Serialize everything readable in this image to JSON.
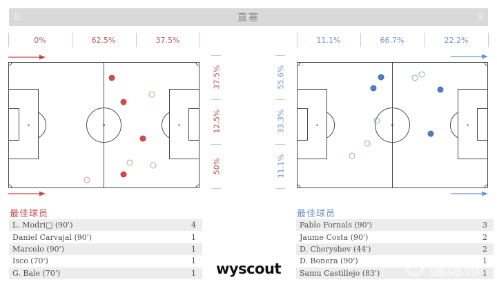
{
  "header": {
    "left_count": "8",
    "title": "直塞",
    "right_count": "9"
  },
  "colors": {
    "team_a": "#c64648",
    "team_a_fill": "#cf4b4d",
    "team_a_open": "#d69495",
    "team_b": "#436fb0",
    "team_b_fill": "#4d7dc5",
    "team_b_open": "#92a5c2",
    "bar_bg": "#d9d9d9",
    "pitch_line": "#484848"
  },
  "team_a": {
    "top_zones": [
      "0%",
      "62.5%",
      "37.5%"
    ],
    "side_zones": [
      "37.5%",
      "12.5%",
      "50%"
    ],
    "best_title": "最佳球员",
    "players": [
      {
        "name": "L. Modri□ (90')",
        "value": "4"
      },
      {
        "name": "Daniel Carvajal (90')",
        "value": "1"
      },
      {
        "name": "Marcelo (90')",
        "value": "1"
      },
      {
        "name": "Isco (70')",
        "value": "1"
      },
      {
        "name": "G. Bale (70')",
        "value": "1"
      }
    ]
  },
  "team_b": {
    "top_zones": [
      "11.1%",
      "66.7%",
      "22.2%"
    ],
    "side_zones": [
      "55.6%",
      "33.3%",
      "11.1%"
    ],
    "best_title": "最佳球员",
    "players": [
      {
        "name": "Pablo Fornals (90')",
        "value": "3"
      },
      {
        "name": "Jaume Costa (90')",
        "value": "2"
      },
      {
        "name": "D. Cheryshev (44')",
        "value": "2"
      },
      {
        "name": "D. Bonera (90')",
        "value": "1"
      },
      {
        "name": "Samu Castillejo (83')",
        "value": "1"
      }
    ]
  },
  "chart_data": [
    {
      "type": "scatter",
      "team": "left",
      "event": "直塞",
      "total_events": 8,
      "x_zone_pcts": [
        0,
        62.5,
        37.5
      ],
      "y_zone_pcts": [
        37.5,
        12.5,
        50
      ],
      "points": [
        {
          "x": 54.2,
          "y": 12.6,
          "filled": true
        },
        {
          "x": 75.1,
          "y": 25.7,
          "filled": false
        },
        {
          "x": 60.3,
          "y": 31.7,
          "filled": true
        },
        {
          "x": 70.4,
          "y": 60.7,
          "filled": true
        },
        {
          "x": 63.5,
          "y": 79.8,
          "filled": false
        },
        {
          "x": 75.8,
          "y": 82.0,
          "filled": false
        },
        {
          "x": 60.3,
          "y": 89.1,
          "filled": true
        },
        {
          "x": 41.2,
          "y": 93.4,
          "filled": false
        }
      ]
    },
    {
      "type": "scatter",
      "team": "right",
      "event": "直塞",
      "total_events": 9,
      "x_zone_pcts": [
        11.1,
        66.7,
        22.2
      ],
      "y_zone_pcts": [
        55.6,
        33.3,
        11.1
      ],
      "points": [
        {
          "x": 44.0,
          "y": 12.0,
          "filled": true
        },
        {
          "x": 65.3,
          "y": 9.8,
          "filled": false
        },
        {
          "x": 61.7,
          "y": 12.6,
          "filled": false
        },
        {
          "x": 40.1,
          "y": 20.8,
          "filled": true
        },
        {
          "x": 75.1,
          "y": 21.9,
          "filled": true
        },
        {
          "x": 41.9,
          "y": 46.4,
          "filled": false
        },
        {
          "x": 70.0,
          "y": 56.8,
          "filled": true
        },
        {
          "x": 36.8,
          "y": 64.5,
          "filled": false
        },
        {
          "x": 28.9,
          "y": 74.3,
          "filled": false
        }
      ]
    }
  ],
  "footer": {
    "brand": "wyscout",
    "watermark": "懂球帝"
  }
}
